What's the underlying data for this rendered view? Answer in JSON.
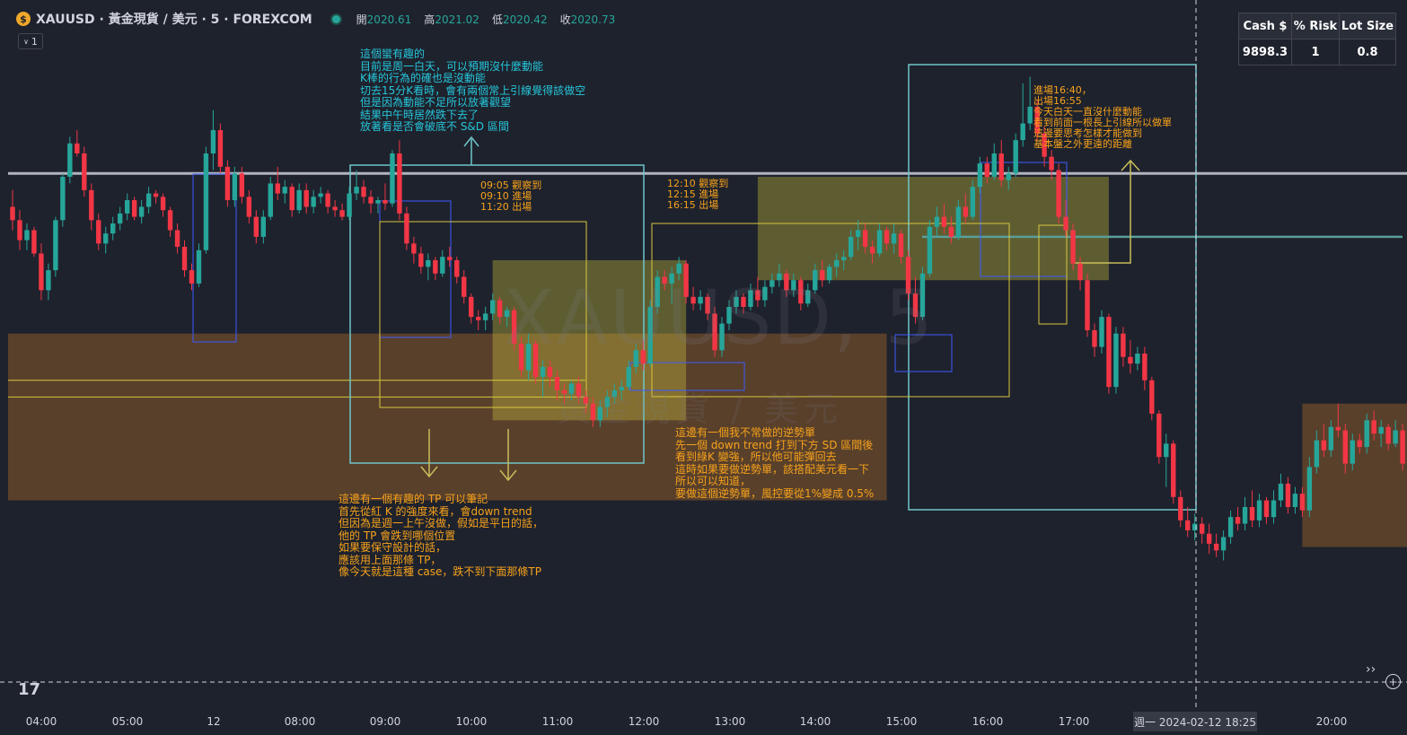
{
  "header": {
    "logo_glyph": "$",
    "symbol": "XAUUSD · 黃金現貨 / 美元 · 5 · FOREXCOM",
    "ohlc": [
      {
        "label": "開",
        "value": "2020.61"
      },
      {
        "label": "高",
        "value": "2021.02"
      },
      {
        "label": "低",
        "value": "2020.42"
      },
      {
        "label": "收",
        "value": "2020.73"
      }
    ],
    "interval_badge": "1"
  },
  "watermark": {
    "line1": "XAUUSD, 5",
    "line2": "黃金現貨 / 美元"
  },
  "position_table": {
    "headers": [
      "Cash $",
      "% Risk",
      "Lot Size"
    ],
    "values": [
      "9898.3",
      "1",
      "0.8"
    ]
  },
  "annotations": {
    "note_top": "這個蠻有趣的\n目前是周一白天，可以預期沒什麼動能\nK棒的行為的確也是沒動能\n切去15分K看時，會有兩個常上引線覺得該做空\n但是因為動能不足所以放著觀望\n結果中午時居然跌下去了\n放著看是否會破底不 S&D 區間",
    "note_trade1": "09:05 觀察到\n09:10 進場\n11:20 出場",
    "note_trade2": "12:10 觀察到\n12:15 進場\n16:15 出場",
    "note_trade3": "進場16:40，\n出場16:55\n今天白天一直沒什麼動能\n看到前面一根長上引線所以做單\n這邊要思考怎樣才能做到\n基本盤之外更遠的距離",
    "note_tp": "這邊有一個有趣的 TP 可以筆記\n首先從紅 K 的強度來看，會down trend\n但因為是週一上午沒做，假如是平日的話，\n他的 TP 會跌到哪個位置\n如果要保守設計的話，\n應該用上面那條 TP，\n像今天就是這種 case，跌不到下面那條TP",
    "note_counter": "這邊有一個我不常做的逆勢單\n先一個 down trend 打到下方 SD 區間後\n看到綠K 變強，所以他可能彈回去\n這時如果要做逆勢單，該搭配美元看一下\n所以可以知道，\n要做這個逆勢單，風控要從1%變成 0.5%"
  },
  "xaxis": {
    "ticks": [
      "04:00",
      "05:00",
      "12",
      "08:00",
      "09:00",
      "10:00",
      "11:00",
      "12:00",
      "13:00",
      "14:00",
      "15:00",
      "16:00",
      "17:00",
      "20:00"
    ],
    "crosshair_label": "週一 2024-02-12   18:25"
  },
  "footer": {
    "tv_logo": "17",
    "nav_glyph": "››",
    "plus_glyph": "+"
  },
  "colors": {
    "up": "#26a69a",
    "down": "#f23645",
    "bg": "#1e222d",
    "cyan_note": "#26c6da",
    "orange_note": "#f7a21b"
  },
  "chart_data": {
    "type": "candlestick",
    "bar_interval_minutes": 5,
    "date": "2024-02-12",
    "start_time": "03:30",
    "candles": [
      [
        2020.3,
        2020.8,
        2019.6,
        2019.9
      ],
      [
        2019.9,
        2020.2,
        2019.0,
        2019.3
      ],
      [
        2019.3,
        2019.8,
        2019.0,
        2019.6
      ],
      [
        2019.6,
        2019.7,
        2018.8,
        2018.9
      ],
      [
        2018.9,
        2019.2,
        2017.5,
        2017.8
      ],
      [
        2017.8,
        2018.6,
        2017.5,
        2018.4
      ],
      [
        2018.4,
        2020.0,
        2018.2,
        2019.9
      ],
      [
        2019.9,
        2021.3,
        2019.7,
        2021.2
      ],
      [
        2021.2,
        2022.4,
        2021.0,
        2022.2
      ],
      [
        2022.2,
        2022.6,
        2021.8,
        2021.9
      ],
      [
        2021.9,
        2022.1,
        2020.6,
        2020.8
      ],
      [
        2020.8,
        2021.0,
        2019.6,
        2019.9
      ],
      [
        2019.9,
        2020.1,
        2019.0,
        2019.2
      ],
      [
        2019.2,
        2019.7,
        2018.9,
        2019.5
      ],
      [
        2019.5,
        2020.0,
        2019.3,
        2019.8
      ],
      [
        2019.8,
        2020.3,
        2019.6,
        2020.1
      ],
      [
        2020.1,
        2020.7,
        2019.9,
        2020.5
      ],
      [
        2020.5,
        2020.6,
        2019.9,
        2020.0
      ],
      [
        2020.0,
        2020.5,
        2019.8,
        2020.3
      ],
      [
        2020.3,
        2020.9,
        2020.1,
        2020.7
      ],
      [
        2020.7,
        2020.8,
        2020.4,
        2020.6
      ],
      [
        2020.6,
        2020.7,
        2020.0,
        2020.2
      ],
      [
        2020.2,
        2020.3,
        2019.4,
        2019.6
      ],
      [
        2019.6,
        2019.8,
        2018.9,
        2019.1
      ],
      [
        2019.1,
        2019.3,
        2018.2,
        2018.4
      ],
      [
        2018.4,
        2018.6,
        2017.8,
        2018.0
      ],
      [
        2018.0,
        2019.2,
        2017.9,
        2019.0
      ],
      [
        2019.0,
        2022.1,
        2018.9,
        2021.9
      ],
      [
        2021.9,
        2023.2,
        2021.4,
        2022.6
      ],
      [
        2022.6,
        2022.8,
        2021.3,
        2021.5
      ],
      [
        2021.5,
        2021.7,
        2020.3,
        2020.5
      ],
      [
        2020.5,
        2021.5,
        2020.3,
        2021.3
      ],
      [
        2021.3,
        2021.5,
        2020.4,
        2020.6
      ],
      [
        2020.6,
        2020.8,
        2019.8,
        2020.0
      ],
      [
        2020.0,
        2020.2,
        2019.2,
        2019.4
      ],
      [
        2019.4,
        2020.2,
        2019.2,
        2020.0
      ],
      [
        2020.0,
        2021.2,
        2019.9,
        2021.0
      ],
      [
        2021.0,
        2021.5,
        2020.5,
        2020.7
      ],
      [
        2020.7,
        2021.1,
        2020.4,
        2020.9
      ],
      [
        2020.9,
        2021.0,
        2020.0,
        2020.2
      ],
      [
        2020.2,
        2021.0,
        2020.1,
        2020.8
      ],
      [
        2020.8,
        2021.0,
        2020.1,
        2020.3
      ],
      [
        2020.3,
        2020.8,
        2020.1,
        2020.6
      ],
      [
        2020.6,
        2020.9,
        2020.4,
        2020.7
      ],
      [
        2020.7,
        2020.8,
        2020.1,
        2020.3
      ],
      [
        2020.3,
        2020.5,
        2020.0,
        2020.2
      ],
      [
        2020.2,
        2020.4,
        2019.9,
        2020.0
      ],
      [
        2020.0,
        2020.9,
        2019.9,
        2020.7
      ],
      [
        2020.7,
        2021.4,
        2020.5,
        2020.9
      ],
      [
        2020.9,
        2021.1,
        2020.4,
        2020.6
      ],
      [
        2020.6,
        2020.8,
        2020.1,
        2020.4
      ],
      [
        2020.4,
        2020.6,
        2020.1,
        2020.5
      ],
      [
        2020.5,
        2021.0,
        2020.2,
        2020.4
      ],
      [
        2020.4,
        2022.0,
        2020.3,
        2021.9
      ],
      [
        2021.9,
        2022.3,
        2019.9,
        2020.1
      ],
      [
        2020.1,
        2020.3,
        2019.0,
        2019.2
      ],
      [
        2019.2,
        2019.4,
        2018.6,
        2018.9
      ],
      [
        2018.9,
        2019.1,
        2018.3,
        2018.5
      ],
      [
        2018.5,
        2018.9,
        2018.1,
        2018.7
      ],
      [
        2018.7,
        2018.8,
        2018.1,
        2018.3
      ],
      [
        2018.3,
        2019.0,
        2018.2,
        2018.8
      ],
      [
        2018.8,
        2019.1,
        2018.5,
        2018.7
      ],
      [
        2018.7,
        2018.8,
        2018.0,
        2018.2
      ],
      [
        2018.2,
        2018.4,
        2017.4,
        2017.6
      ],
      [
        2017.6,
        2017.7,
        2016.8,
        2017.0
      ],
      [
        2017.0,
        2017.2,
        2016.6,
        2016.9
      ],
      [
        2016.9,
        2017.3,
        2016.6,
        2017.1
      ],
      [
        2017.1,
        2017.7,
        2016.9,
        2017.5
      ],
      [
        2017.5,
        2017.6,
        2016.8,
        2017.0
      ],
      [
        2017.0,
        2017.3,
        2016.7,
        2017.2
      ],
      [
        2017.2,
        2017.3,
        2016.0,
        2016.2
      ],
      [
        2016.2,
        2016.4,
        2015.2,
        2015.4
      ],
      [
        2015.4,
        2016.5,
        2015.1,
        2016.2
      ],
      [
        2016.2,
        2016.3,
        2015.0,
        2015.2
      ],
      [
        2015.2,
        2015.7,
        2014.6,
        2015.5
      ],
      [
        2015.5,
        2015.7,
        2014.9,
        2015.2
      ],
      [
        2015.2,
        2015.4,
        2014.5,
        2014.8
      ],
      [
        2014.8,
        2015.0,
        2014.4,
        2014.7
      ],
      [
        2014.7,
        2015.1,
        2014.5,
        2015.0
      ],
      [
        2015.0,
        2015.2,
        2014.4,
        2014.6
      ],
      [
        2014.6,
        2014.8,
        2014.1,
        2014.4
      ],
      [
        2014.4,
        2014.6,
        2013.7,
        2013.9
      ],
      [
        2013.9,
        2014.5,
        2013.7,
        2014.3
      ],
      [
        2014.3,
        2014.8,
        2014.0,
        2014.6
      ],
      [
        2014.6,
        2015.0,
        2014.4,
        2014.8
      ],
      [
        2014.8,
        2015.1,
        2014.5,
        2014.9
      ],
      [
        2014.9,
        2015.7,
        2014.8,
        2015.5
      ],
      [
        2015.5,
        2016.2,
        2015.3,
        2016.0
      ],
      [
        2016.0,
        2016.3,
        2015.4,
        2015.6
      ],
      [
        2015.6,
        2017.5,
        2015.5,
        2017.3
      ],
      [
        2017.3,
        2018.4,
        2017.1,
        2018.2
      ],
      [
        2018.2,
        2018.4,
        2017.8,
        2018.0
      ],
      [
        2018.0,
        2018.5,
        2017.4,
        2018.3
      ],
      [
        2018.3,
        2018.8,
        2018.1,
        2018.6
      ],
      [
        2018.6,
        2018.7,
        2017.4,
        2017.6
      ],
      [
        2017.6,
        2017.9,
        2017.2,
        2017.4
      ],
      [
        2017.4,
        2017.8,
        2017.2,
        2017.6
      ],
      [
        2017.6,
        2017.7,
        2016.9,
        2017.1
      ],
      [
        2017.1,
        2017.3,
        2015.8,
        2016.0
      ],
      [
        2016.0,
        2017.0,
        2015.8,
        2016.8
      ],
      [
        2016.8,
        2017.5,
        2016.6,
        2017.3
      ],
      [
        2017.3,
        2017.8,
        2017.1,
        2017.6
      ],
      [
        2017.6,
        2017.7,
        2017.1,
        2017.3
      ],
      [
        2017.3,
        2018.0,
        2017.2,
        2017.8
      ],
      [
        2017.8,
        2018.2,
        2017.3,
        2017.5
      ],
      [
        2017.5,
        2018.1,
        2017.3,
        2017.9
      ],
      [
        2017.9,
        2018.3,
        2017.7,
        2018.1
      ],
      [
        2018.1,
        2018.6,
        2017.9,
        2018.3
      ],
      [
        2018.3,
        2018.4,
        2017.6,
        2017.8
      ],
      [
        2017.8,
        2018.3,
        2017.6,
        2018.1
      ],
      [
        2018.1,
        2018.2,
        2017.2,
        2017.4
      ],
      [
        2017.4,
        2018.0,
        2017.3,
        2017.8
      ],
      [
        2017.8,
        2018.6,
        2017.7,
        2018.4
      ],
      [
        2018.4,
        2018.7,
        2017.9,
        2018.1
      ],
      [
        2018.1,
        2018.6,
        2018.0,
        2018.5
      ],
      [
        2018.5,
        2018.9,
        2018.2,
        2018.7
      ],
      [
        2018.7,
        2019.0,
        2018.4,
        2018.8
      ],
      [
        2018.8,
        2019.6,
        2018.7,
        2019.4
      ],
      [
        2019.4,
        2019.9,
        2019.0,
        2019.6
      ],
      [
        2019.6,
        2019.8,
        2018.9,
        2019.1
      ],
      [
        2019.1,
        2019.3,
        2018.6,
        2018.9
      ],
      [
        2018.9,
        2019.8,
        2018.8,
        2019.6
      ],
      [
        2019.6,
        2019.7,
        2019.0,
        2019.2
      ],
      [
        2019.2,
        2019.8,
        2018.9,
        2019.5
      ],
      [
        2019.5,
        2019.6,
        2018.6,
        2018.8
      ],
      [
        2018.8,
        2019.0,
        2017.5,
        2017.7
      ],
      [
        2017.7,
        2018.2,
        2016.8,
        2017.0
      ],
      [
        2017.0,
        2018.5,
        2016.9,
        2018.3
      ],
      [
        2018.3,
        2019.9,
        2018.2,
        2019.7
      ],
      [
        2019.7,
        2020.3,
        2019.4,
        2020.0
      ],
      [
        2020.0,
        2020.4,
        2019.5,
        2019.7
      ],
      [
        2019.7,
        2020.0,
        2019.2,
        2019.4
      ],
      [
        2019.4,
        2020.5,
        2019.3,
        2020.3
      ],
      [
        2020.3,
        2020.7,
        2019.8,
        2020.0
      ],
      [
        2020.0,
        2021.1,
        2019.9,
        2020.9
      ],
      [
        2020.9,
        2021.8,
        2020.7,
        2021.6
      ],
      [
        2021.6,
        2021.8,
        2021.0,
        2021.2
      ],
      [
        2021.2,
        2022.2,
        2021.1,
        2021.9
      ],
      [
        2021.9,
        2022.3,
        2020.9,
        2021.1
      ],
      [
        2021.1,
        2021.5,
        2020.8,
        2021.3
      ],
      [
        2021.3,
        2022.5,
        2021.2,
        2022.3
      ],
      [
        2022.3,
        2024.0,
        2022.1,
        2022.8
      ],
      [
        2022.8,
        2024.2,
        2022.6,
        2023.3
      ],
      [
        2023.3,
        2023.5,
        2022.3,
        2022.5
      ],
      [
        2022.5,
        2022.7,
        2021.5,
        2021.8
      ],
      [
        2021.8,
        2022.0,
        2021.1,
        2021.4
      ],
      [
        2021.4,
        2021.6,
        2019.8,
        2020.0
      ],
      [
        2020.0,
        2020.5,
        2019.4,
        2019.6
      ],
      [
        2019.6,
        2019.8,
        2018.4,
        2018.6
      ],
      [
        2018.6,
        2018.8,
        2017.8,
        2018.1
      ],
      [
        2018.1,
        2018.3,
        2016.4,
        2016.6
      ],
      [
        2016.6,
        2016.8,
        2015.8,
        2016.1
      ],
      [
        2016.1,
        2017.2,
        2015.9,
        2017.0
      ],
      [
        2017.0,
        2017.1,
        2014.7,
        2014.9
      ],
      [
        2014.9,
        2016.7,
        2014.7,
        2016.5
      ],
      [
        2016.5,
        2016.7,
        2015.5,
        2015.8
      ],
      [
        2015.8,
        2016.3,
        2015.3,
        2015.6
      ],
      [
        2015.6,
        2016.1,
        2015.4,
        2015.9
      ],
      [
        2015.9,
        2016.1,
        2014.8,
        2015.1
      ],
      [
        2015.1,
        2015.2,
        2013.9,
        2014.1
      ],
      [
        2014.1,
        2014.2,
        2012.6,
        2012.8
      ],
      [
        2012.8,
        2013.5,
        2011.9,
        2013.2
      ],
      [
        2013.2,
        2013.3,
        2011.4,
        2011.6
      ],
      [
        2011.6,
        2011.8,
        2010.7,
        2010.9
      ],
      [
        2010.9,
        2011.3,
        2010.4,
        2010.6
      ],
      [
        2010.6,
        2011.1,
        2010.3,
        2010.8
      ],
      [
        2010.8,
        2011.0,
        2010.2,
        2010.5
      ],
      [
        2010.5,
        2010.8,
        2009.9,
        2010.2
      ],
      [
        2010.2,
        2010.5,
        2009.8,
        2010.0
      ],
      [
        2010.0,
        2010.6,
        2009.7,
        2010.4
      ],
      [
        2010.4,
        2011.2,
        2010.2,
        2011.0
      ],
      [
        2011.0,
        2011.3,
        2010.6,
        2010.8
      ],
      [
        2010.8,
        2011.6,
        2010.6,
        2011.3
      ],
      [
        2011.3,
        2011.8,
        2010.7,
        2010.9
      ],
      [
        2010.9,
        2011.7,
        2010.7,
        2011.5
      ],
      [
        2011.5,
        2011.6,
        2010.8,
        2011.0
      ],
      [
        2011.0,
        2011.8,
        2010.8,
        2011.5
      ],
      [
        2011.5,
        2012.3,
        2011.3,
        2012.0
      ],
      [
        2012.0,
        2012.2,
        2011.1,
        2011.3
      ],
      [
        2011.3,
        2011.9,
        2011.1,
        2011.7
      ],
      [
        2011.7,
        2011.9,
        2011.0,
        2011.2
      ],
      [
        2011.2,
        2012.8,
        2011.0,
        2012.5
      ],
      [
        2012.5,
        2013.6,
        2012.3,
        2013.3
      ],
      [
        2013.3,
        2013.8,
        2012.8,
        2013.0
      ],
      [
        2013.0,
        2013.9,
        2012.8,
        2013.7
      ],
      [
        2013.7,
        2014.4,
        2013.4,
        2013.6
      ],
      [
        2013.6,
        2013.8,
        2012.3,
        2012.6
      ],
      [
        2012.6,
        2013.5,
        2012.4,
        2013.3
      ],
      [
        2013.3,
        2013.5,
        2012.9,
        2013.1
      ],
      [
        2013.1,
        2014.1,
        2012.9,
        2013.9
      ],
      [
        2013.9,
        2014.2,
        2013.3,
        2013.5
      ],
      [
        2013.5,
        2013.9,
        2013.1,
        2013.7
      ],
      [
        2013.7,
        2013.8,
        2013.0,
        2013.2
      ],
      [
        2013.2,
        2013.9,
        2013.1,
        2013.6
      ],
      [
        2013.6,
        2013.8,
        2012.4,
        2012.6
      ],
      [
        2012.6,
        2012.8,
        2011.9,
        2012.1
      ],
      [
        2012.1,
        2012.7,
        2011.6,
        2011.8
      ],
      [
        2011.8,
        2012.5,
        2011.3,
        2012.3
      ],
      [
        2012.3,
        2013.0,
        2012.2,
        2012.8
      ]
    ],
    "horizontal_lines": [
      2021.3,
      2019.4
    ],
    "tp_lines": [
      2015.1,
      2014.6
    ],
    "zones": [
      {
        "kind": "demand",
        "from_time": "03:30",
        "to_time": "13:40",
        "top": 2016.5,
        "bottom": 2011.5
      },
      {
        "kind": "supply",
        "from_time": "09:05",
        "to_time": "11:20",
        "top": 2018.7,
        "bottom": 2013.9
      },
      {
        "kind": "supply",
        "from_time": "12:10",
        "to_time": "16:15",
        "top": 2021.2,
        "bottom": 2018.1
      },
      {
        "kind": "demand",
        "from_time": "18:30",
        "to_time": "20:50",
        "top": 2014.4,
        "bottom": 2010.1
      }
    ],
    "crosshair_time": "2024-02-12 18:25",
    "ylim": [
      2005.3,
      2026.5
    ]
  }
}
